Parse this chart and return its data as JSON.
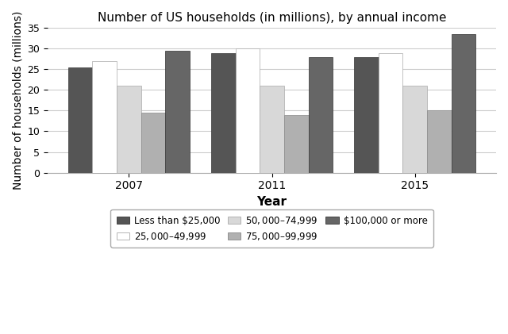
{
  "title": "Number of US households (in millions), by annual income",
  "xlabel": "Year",
  "ylabel": "Number of households (millions)",
  "years": [
    "2007",
    "2011",
    "2015"
  ],
  "categories": [
    "Less than $25,000",
    "$25,000–$49,999",
    "$50,000–$74,999",
    "$75,000–$99,999",
    "$100,000 or more"
  ],
  "values": {
    "Less than $25,000": [
      25.5,
      29.0,
      28.0
    ],
    "$25,000–$49,999": [
      27.0,
      30.0,
      29.0
    ],
    "$50,000–$74,999": [
      21.0,
      21.0,
      21.0
    ],
    "$75,000–$99,999": [
      14.5,
      14.0,
      15.0
    ],
    "$100,000 or more": [
      29.5,
      28.0,
      33.5
    ]
  },
  "colors": [
    "#555555",
    "#ffffff",
    "#d8d8d8",
    "#b0b0b0",
    "#666666"
  ],
  "bar_edge_colors": [
    "#333333",
    "#aaaaaa",
    "#aaaaaa",
    "#888888",
    "#333333"
  ],
  "ylim": [
    0,
    35
  ],
  "yticks": [
    0,
    5,
    10,
    15,
    20,
    25,
    30,
    35
  ],
  "figsize": [
    6.4,
    4.21
  ],
  "dpi": 100,
  "background_color": "#ffffff",
  "grid_color": "#cccccc"
}
